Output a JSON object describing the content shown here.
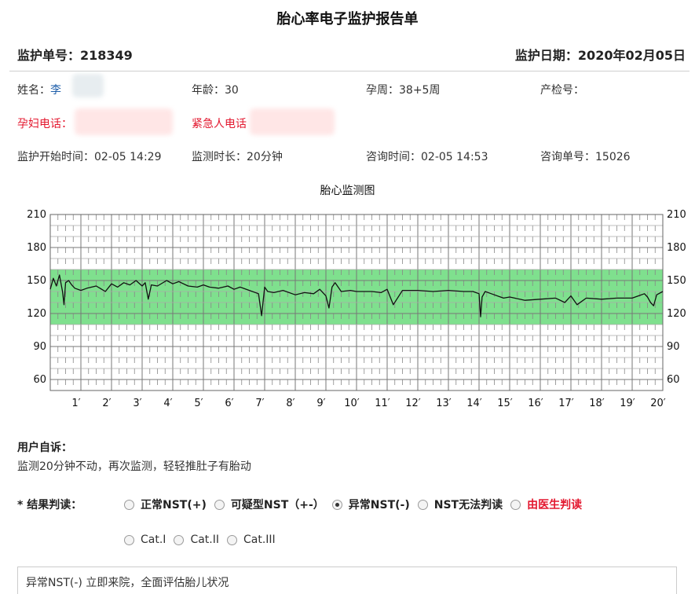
{
  "report": {
    "title": "胎心率电子监护报告单",
    "monitor_no": "监护单号：218349",
    "monitor_date": "监护日期：2020年02月05日"
  },
  "info": {
    "name_label": "姓名：",
    "name_value": "李",
    "age": "年龄：30",
    "gestation": "孕周：38+5周",
    "checkup_no": "产检号：",
    "phone_label": "孕妇电话：",
    "emergency_label": "紧急人电话",
    "start_time": "监护开始时间：02-05 14:29",
    "duration": "监测时长：20分钟",
    "consult_time": "咨询时间：02-05 14:53",
    "consult_no": "咨询单号：15026"
  },
  "chart_title": "胎心监测图",
  "chart_data": {
    "type": "line",
    "title": "胎心监测图",
    "xlabel": "",
    "ylabel": "",
    "xlim": [
      0,
      20
    ],
    "ylim": [
      50,
      210
    ],
    "y_ticks": [
      210,
      180,
      150,
      120,
      90,
      60
    ],
    "x_tick_labels": [
      "1′",
      "2′",
      "3′",
      "4′",
      "5′",
      "6′",
      "7′",
      "8′",
      "9′",
      "10′",
      "11′",
      "12′",
      "13′",
      "14′",
      "15′",
      "16′",
      "17′",
      "18′",
      "19′",
      "20′"
    ],
    "normal_band": [
      110,
      160
    ],
    "band_color": "#7fe08e",
    "grid": true,
    "series": [
      {
        "x": [
          0,
          0.1,
          0.2,
          0.3,
          0.4,
          0.45,
          0.5,
          0.6,
          0.7,
          0.8,
          1,
          1.2,
          1.5,
          1.8,
          2,
          2.2,
          2.4,
          2.6,
          2.8,
          3,
          3.1,
          3.2,
          3.3,
          3.5,
          3.8,
          4,
          4.2,
          4.5,
          4.8,
          5,
          5.2,
          5.5,
          5.8,
          6,
          6.2,
          6.5,
          6.8,
          6.9,
          7,
          7.1,
          7.3,
          7.6,
          8,
          8.3,
          8.6,
          8.8,
          9,
          9.1,
          9.2,
          9.3,
          9.5,
          9.8,
          10,
          10.5,
          10.8,
          11,
          11.2,
          11.5,
          12,
          12.5,
          13,
          13.5,
          13.8,
          14,
          14.05,
          14.1,
          14.2,
          14.4,
          14.8,
          15,
          15.5,
          16,
          16.5,
          16.8,
          17,
          17.2,
          17.5,
          18,
          18.5,
          19,
          19.2,
          19.4,
          19.5,
          19.6,
          19.7,
          19.8,
          20
        ],
        "y": [
          142,
          152,
          145,
          155,
          140,
          128,
          148,
          150,
          146,
          143,
          141,
          143,
          145,
          140,
          147,
          144,
          148,
          146,
          150,
          145,
          148,
          133,
          146,
          145,
          150,
          147,
          149,
          145,
          144,
          146,
          144,
          143,
          145,
          142,
          144,
          141,
          138,
          118,
          144,
          140,
          139,
          141,
          137,
          139,
          138,
          142,
          136,
          125,
          144,
          148,
          140,
          141,
          140,
          140,
          139,
          142,
          128,
          141,
          141,
          140,
          141,
          140,
          140,
          138,
          117,
          135,
          140,
          138,
          134,
          135,
          132,
          133,
          134,
          130,
          136,
          128,
          134,
          133,
          134,
          134,
          136,
          138,
          135,
          130,
          127,
          137,
          140
        ]
      }
    ]
  },
  "complaint": {
    "label": "用户自诉：",
    "text": "监测20分钟不动，再次监测，轻轻推肚子有胎动"
  },
  "result": {
    "label": "* 结果判读：",
    "options_row1": [
      {
        "label": "正常NST(+)",
        "checked": false
      },
      {
        "label": "可疑型NST（+-）",
        "checked": false
      },
      {
        "label": "异常NST(-)",
        "checked": true
      },
      {
        "label": "NST无法判读",
        "checked": false
      },
      {
        "label": "由医生判读",
        "checked": false
      }
    ],
    "options_row2": [
      {
        "label": "Cat.I",
        "checked": false
      },
      {
        "label": "Cat.II",
        "checked": false
      },
      {
        "label": "Cat.III",
        "checked": false
      }
    ],
    "conclusion": "异常NST(-) 立即来院，全面评估胎儿状况"
  }
}
